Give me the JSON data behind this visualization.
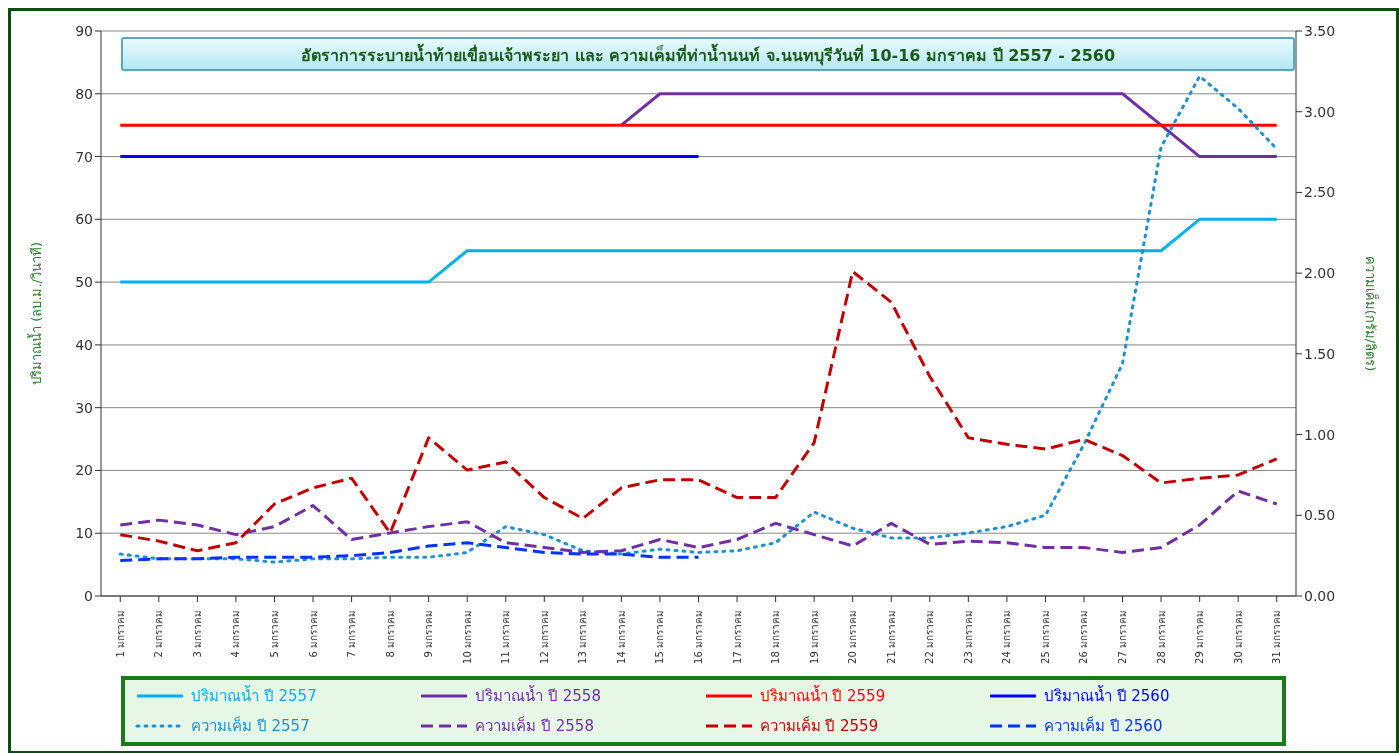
{
  "chart_data": {
    "type": "line",
    "title": "อัตราการระบายน้ำท้ายเขื่อนเจ้าพระยา  และ ความเค็มที่ท่าน้ำนนท์ จ.นนทบุรีวันที่ 10-16 มกราคม ปี 2557 - 2560",
    "ylabel": "ปริมาณน้ำ (ลบ.ม./วินาที)",
    "y2label": "ความเค็ม(กรัม/ลิตร)",
    "categories": [
      "1 มกราคม",
      "2 มกราคม",
      "3 มกราคม",
      "4 มกราคม",
      "5 มกราคม",
      "6 มกราคม",
      "7 มกราคม",
      "8 มกราคม",
      "9 มกราคม",
      "10 มกราคม",
      "11 มกราคม",
      "12 มกราคม",
      "13 มกราคม",
      "14 มกราคม",
      "15 มกราคม",
      "16 มกราคม",
      "17 มกราคม",
      "18 มกราคม",
      "19 มกราคม",
      "20 มกราคม",
      "21 มกราคม",
      "22 มกราคม",
      "23 มกราคม",
      "24 มกราคม",
      "25 มกราคม",
      "26 มกราคม",
      "27 มกราคม",
      "28 มกราคม",
      "29 มกราคม",
      "30 มกราคม",
      "31 มกราคม"
    ],
    "series": [
      {
        "name": "ปริมาณน้ำ ปี 2557",
        "color": "#00b0f0",
        "line_style": "solid",
        "values": [
          50,
          50,
          50,
          50,
          50,
          50,
          50,
          50,
          50,
          55,
          55,
          55,
          55,
          55,
          55,
          55,
          55,
          55,
          55,
          55,
          55,
          55,
          55,
          55,
          55,
          55,
          55,
          55,
          60,
          60,
          60
        ]
      },
      {
        "name": "ปริมาณน้ำ ปี 2558",
        "color": "#7030a0",
        "line_style": "solid",
        "values": [
          null,
          null,
          null,
          null,
          null,
          null,
          null,
          null,
          null,
          null,
          null,
          null,
          null,
          75,
          80,
          80,
          80,
          80,
          80,
          80,
          80,
          80,
          80,
          80,
          80,
          80,
          80,
          75,
          70,
          70,
          70
        ]
      },
      {
        "name": "ปริมาณน้ำ ปี 2559",
        "color": "#ff0000",
        "line_style": "solid",
        "values": [
          75,
          75,
          75,
          75,
          75,
          75,
          75,
          75,
          75,
          75,
          75,
          75,
          75,
          75,
          75,
          75,
          75,
          75,
          75,
          75,
          75,
          75,
          75,
          75,
          75,
          75,
          75,
          75,
          75,
          75,
          75
        ]
      },
      {
        "name": "ปริมาณน้ำ ปี 2560",
        "color": "#0000ff",
        "line_style": "solid",
        "values": [
          70,
          70,
          70,
          70,
          70,
          70,
          70,
          70,
          70,
          70,
          70,
          70,
          70,
          70,
          70,
          70,
          null,
          null,
          null,
          null,
          null,
          null,
          null,
          null,
          null,
          null,
          null,
          null,
          null,
          null,
          null
        ]
      },
      {
        "name": "ความเค็ม ปี 2557",
        "color": "#1e90d0",
        "line_style": "dotted",
        "axis": "y2",
        "values": [
          0.26,
          0.23,
          0.23,
          0.23,
          0.21,
          0.23,
          0.23,
          0.24,
          0.24,
          0.27,
          0.43,
          0.38,
          0.28,
          0.26,
          0.29,
          0.27,
          0.28,
          0.33,
          0.52,
          0.42,
          0.36,
          0.36,
          0.39,
          0.43,
          0.5,
          0.94,
          1.44,
          2.78,
          3.22,
          3.02,
          2.77
        ]
      },
      {
        "name": "ความเค็ม ปี 2558",
        "color": "#7030a0",
        "line_style": "dashed",
        "axis": "y2",
        "values": [
          0.44,
          0.47,
          0.44,
          0.38,
          0.43,
          0.56,
          0.35,
          0.39,
          0.43,
          0.46,
          0.33,
          0.3,
          0.27,
          0.28,
          0.35,
          0.3,
          0.35,
          0.45,
          0.38,
          0.31,
          0.45,
          0.32,
          0.34,
          0.33,
          0.3,
          0.3,
          0.27,
          0.3,
          0.44,
          0.65,
          0.57
        ]
      },
      {
        "name": "ความเค็ม ปี 2559",
        "color": "#c00000",
        "line_style": "dashed",
        "axis": "y2",
        "values": [
          0.38,
          0.34,
          0.28,
          0.33,
          0.57,
          0.67,
          0.73,
          0.39,
          0.98,
          0.78,
          0.83,
          0.61,
          0.48,
          0.67,
          0.72,
          0.72,
          0.61,
          0.61,
          0.95,
          2.01,
          1.82,
          1.36,
          0.98,
          0.94,
          0.91,
          0.97,
          0.87,
          0.7,
          0.73,
          0.75,
          0.85
        ]
      },
      {
        "name": "ความเค็ม ปี 2560",
        "color": "#0033ff",
        "line_style": "dashed",
        "axis": "y2",
        "values": [
          0.22,
          0.23,
          0.23,
          0.24,
          0.24,
          0.24,
          0.25,
          0.27,
          0.31,
          0.33,
          0.3,
          0.27,
          0.26,
          0.26,
          0.24,
          0.24,
          null,
          null,
          null,
          null,
          null,
          null,
          null,
          null,
          null,
          null,
          null,
          null,
          null,
          null,
          null
        ]
      }
    ],
    "ylim": [
      0,
      90
    ],
    "yticks": [
      0,
      10,
      20,
      30,
      40,
      50,
      60,
      70,
      80,
      90
    ],
    "y2lim": [
      0,
      3.5
    ],
    "y2ticks": [
      {
        "value": 0,
        "label": "0.00"
      },
      {
        "value": 0.5,
        "label": "0.50"
      },
      {
        "value": 1,
        "label": "1.00"
      },
      {
        "value": 1.5,
        "label": "1.50"
      },
      {
        "value": 2,
        "label": "2.00"
      },
      {
        "value": 2.5,
        "label": "2.50"
      },
      {
        "value": 3,
        "label": "3.00"
      },
      {
        "value": 3.5,
        "label": "3.50"
      }
    ],
    "grid": "y",
    "legend": "bottom",
    "marker": "none"
  }
}
